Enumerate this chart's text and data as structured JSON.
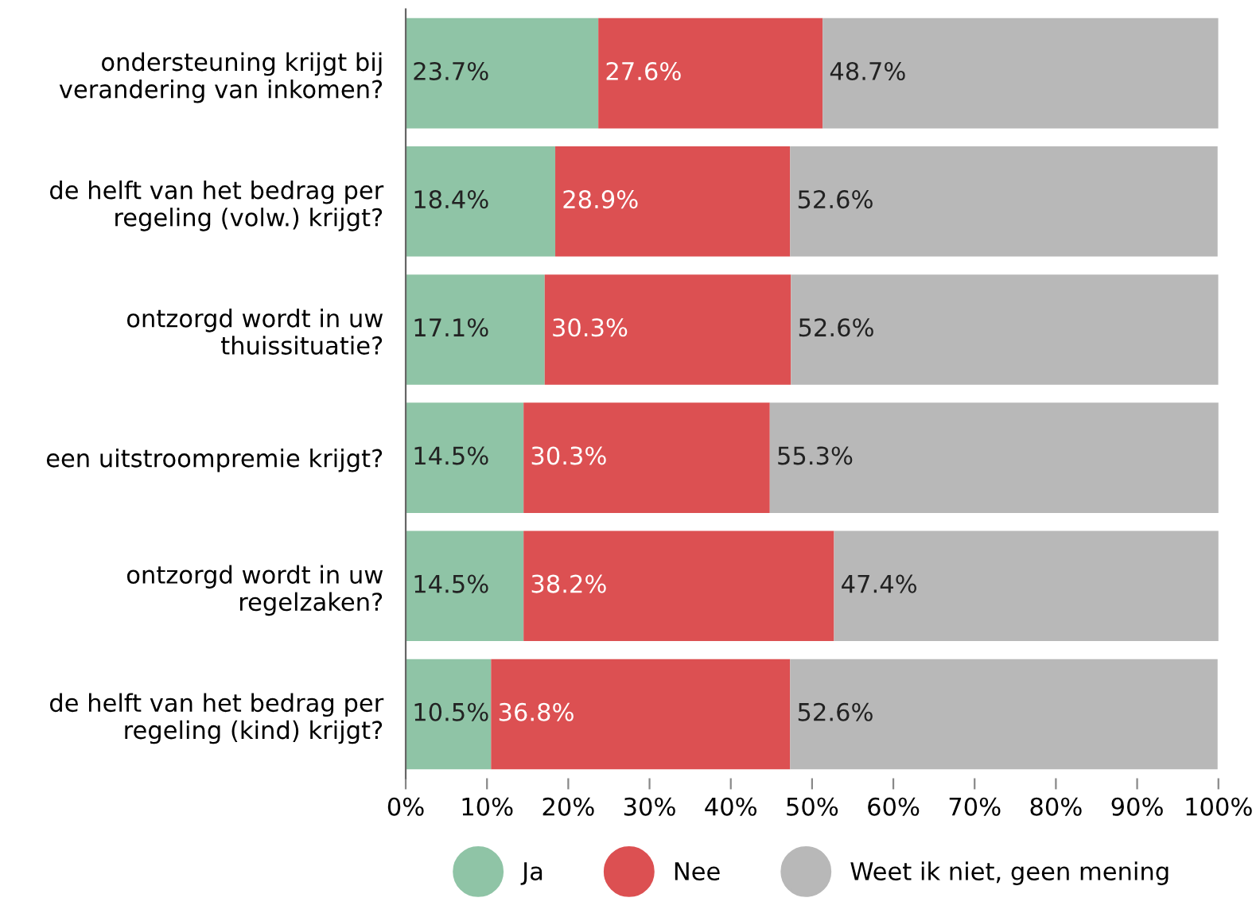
{
  "chart_data": {
    "type": "bar",
    "orientation": "horizontal",
    "stacked": true,
    "categories": [
      "ondersteuning krijgt bij\nverandering van inkomen?",
      "de helft van het bedrag per\nregeling (volw.) krijgt?",
      "ontzorgd wordt in uw\nthuissituatie?",
      "een uitstroompremie krijgt?",
      "ontzorgd wordt in uw\nregelzaken?",
      "de helft van het bedrag per\nregeling (kind) krijgt?"
    ],
    "series": [
      {
        "name": "Ja",
        "color": "#8fc4a6",
        "values": [
          23.7,
          18.4,
          17.1,
          14.5,
          14.5,
          10.5
        ],
        "value_labels": [
          "23.7%",
          "18.4%",
          "17.1%",
          "14.5%",
          "14.5%",
          "10.5%"
        ]
      },
      {
        "name": "Nee",
        "color": "#dc5052",
        "values": [
          27.6,
          28.9,
          30.3,
          30.3,
          38.2,
          36.8
        ],
        "value_labels": [
          "27.6%",
          "28.9%",
          "30.3%",
          "30.3%",
          "38.2%",
          "36.8%"
        ]
      },
      {
        "name": "Weet ik niet, geen mening",
        "color": "#b8b8b8",
        "values": [
          48.7,
          52.6,
          52.6,
          55.3,
          47.4,
          52.6
        ],
        "value_labels": [
          "48.7%",
          "52.6%",
          "52.6%",
          "55.3%",
          "47.4%",
          "52.6%"
        ]
      }
    ],
    "xlim": [
      0,
      100
    ],
    "xticks": [
      {
        "value": 0,
        "label": "0%"
      },
      {
        "value": 10,
        "label": "10%"
      },
      {
        "value": 20,
        "label": "20%"
      },
      {
        "value": 30,
        "label": "30%"
      },
      {
        "value": 40,
        "label": "40%"
      },
      {
        "value": 50,
        "label": "50%"
      },
      {
        "value": 60,
        "label": "60%"
      },
      {
        "value": 70,
        "label": "70%"
      },
      {
        "value": 80,
        "label": "80%"
      },
      {
        "value": 90,
        "label": "90%"
      },
      {
        "value": 100,
        "label": "100%"
      }
    ],
    "legend": "bottom",
    "grid": false
  }
}
